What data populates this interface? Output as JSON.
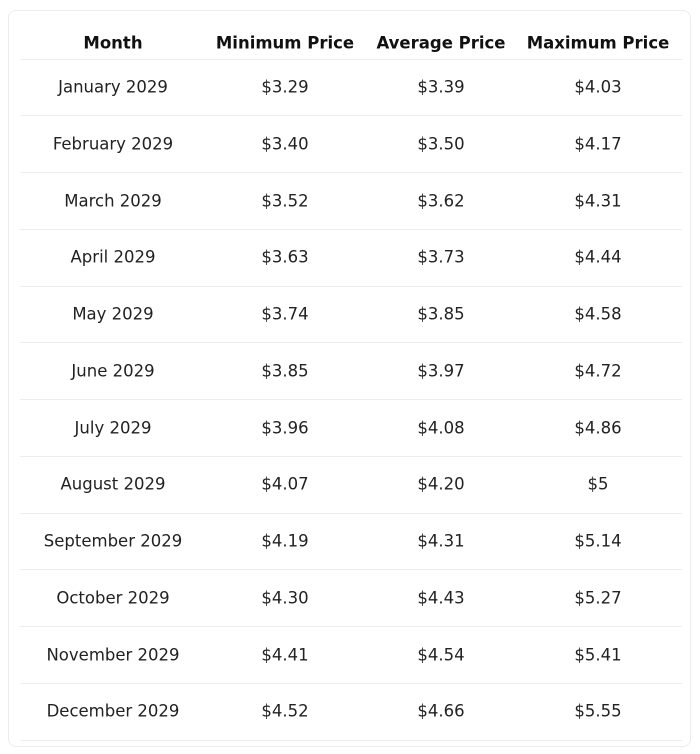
{
  "table": {
    "columns": [
      "Month",
      "Minimum Price",
      "Average Price",
      "Maximum Price"
    ],
    "rows": [
      [
        "January 2029",
        "$3.29",
        "$3.39",
        "$4.03"
      ],
      [
        "February 2029",
        "$3.40",
        "$3.50",
        "$4.17"
      ],
      [
        "March 2029",
        "$3.52",
        "$3.62",
        "$4.31"
      ],
      [
        "April 2029",
        "$3.63",
        "$3.73",
        "$4.44"
      ],
      [
        "May 2029",
        "$3.74",
        "$3.85",
        "$4.58"
      ],
      [
        "June 2029",
        "$3.85",
        "$3.97",
        "$4.72"
      ],
      [
        "July 2029",
        "$3.96",
        "$4.08",
        "$4.86"
      ],
      [
        "August 2029",
        "$4.07",
        "$4.20",
        "$5"
      ],
      [
        "September 2029",
        "$4.19",
        "$4.31",
        "$5.14"
      ],
      [
        "October 2029",
        "$4.30",
        "$4.43",
        "$5.27"
      ],
      [
        "November 2029",
        "$4.41",
        "$4.54",
        "$5.41"
      ],
      [
        "December 2029",
        "$4.52",
        "$4.66",
        "$5.55"
      ]
    ]
  }
}
